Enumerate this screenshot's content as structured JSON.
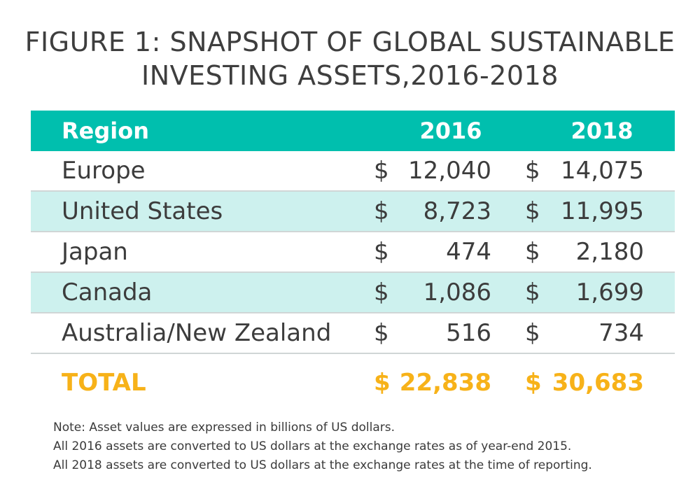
{
  "title": {
    "line1": "FIGURE 1:   SNAPSHOT OF GLOBAL SUSTAINABLE",
    "line2": "INVESTING ASSETS,2016-2018"
  },
  "chart_data": {
    "type": "table",
    "title": "FIGURE 1:   SNAPSHOT OF GLOBAL SUSTAINABLE INVESTING ASSETS,2016-2018",
    "columns": [
      "Region",
      "2016",
      "2018"
    ],
    "currency_symbol": "$",
    "rows": [
      {
        "region": "Europe",
        "v2016": "12,040",
        "v2018": "14,075"
      },
      {
        "region": "United States",
        "v2016": "8,723",
        "v2018": "11,995"
      },
      {
        "region": "Japan",
        "v2016": "474",
        "v2018": "2,180"
      },
      {
        "region": "Canada",
        "v2016": "1,086",
        "v2018": "1,699"
      },
      {
        "region": "Australia/New Zealand",
        "v2016": "516",
        "v2018": "734"
      }
    ],
    "total": {
      "label": "TOTAL",
      "v2016": "22,838",
      "v2018": "30,683"
    },
    "notes": [
      "Note: Asset values are expressed in billions of US dollars.",
      "All 2016 assets are converted to US dollars at the exchange rates as of year-end 2015.",
      "All 2018 assets are converted to US dollars at the exchange rates at the time of reporting."
    ]
  },
  "colors": {
    "header_bg": "#00bfae",
    "alt_row_bg": "#cdf1ee",
    "total_text": "#f7b219"
  }
}
